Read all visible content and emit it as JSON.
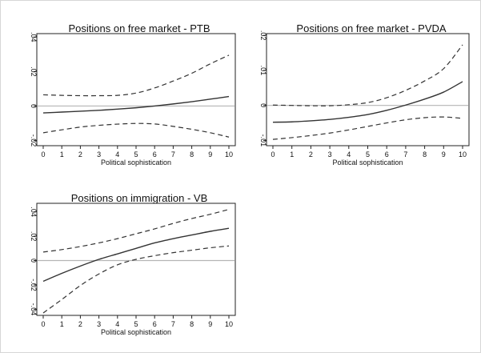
{
  "chart_data": [
    {
      "type": "line",
      "title": "Positions on free market - PTB",
      "xlabel": "Political sophistication",
      "ylabel": "",
      "x": [
        0,
        1,
        2,
        3,
        4,
        5,
        6,
        7,
        8,
        9,
        10
      ],
      "xlim": [
        0,
        10
      ],
      "ylim": [
        -0.023,
        0.042
      ],
      "yticks": [
        -0.02,
        0,
        0.02,
        0.04
      ],
      "ytick_labels": [
        "-.02",
        "0",
        ".02",
        ".04"
      ],
      "reference_line": 0,
      "series": [
        {
          "role": "estimate",
          "style": "solid",
          "values": [
            -0.004,
            -0.0035,
            -0.003,
            -0.0025,
            -0.0018,
            -0.001,
            0.0,
            0.0012,
            0.0025,
            0.004,
            0.0055
          ]
        },
        {
          "role": "upper_ci",
          "style": "dashed",
          "values": [
            0.0065,
            0.0062,
            0.006,
            0.006,
            0.0062,
            0.0075,
            0.0105,
            0.0145,
            0.019,
            0.0245,
            0.0295
          ]
        },
        {
          "role": "lower_ci",
          "style": "dashed",
          "values": [
            -0.0155,
            -0.0138,
            -0.0122,
            -0.0112,
            -0.0105,
            -0.0101,
            -0.0104,
            -0.0118,
            -0.0135,
            -0.0155,
            -0.018
          ]
        }
      ]
    },
    {
      "type": "line",
      "title": "Positions on free market - PVDA",
      "xlabel": "Political sophistication",
      "ylabel": "",
      "x": [
        0,
        1,
        2,
        3,
        4,
        5,
        6,
        7,
        8,
        9,
        10
      ],
      "xlim": [
        0,
        10
      ],
      "ylim": [
        -0.0115,
        0.0205
      ],
      "yticks": [
        -0.01,
        0,
        0.01,
        0.02
      ],
      "ytick_labels": [
        "-.01",
        "0",
        ".01",
        ".02"
      ],
      "reference_line": 0,
      "series": [
        {
          "role": "estimate",
          "style": "solid",
          "values": [
            -0.0048,
            -0.0047,
            -0.0044,
            -0.004,
            -0.0034,
            -0.0026,
            -0.0014,
            0.0001,
            0.0018,
            0.0038,
            0.0068
          ]
        },
        {
          "role": "upper_ci",
          "style": "dashed",
          "values": [
            0.0001,
            0.0,
            -0.0001,
            -0.0001,
            0.0002,
            0.0008,
            0.0022,
            0.0043,
            0.007,
            0.0105,
            0.0173
          ]
        },
        {
          "role": "lower_ci",
          "style": "dashed",
          "values": [
            -0.0097,
            -0.0092,
            -0.0086,
            -0.0079,
            -0.007,
            -0.006,
            -0.005,
            -0.0041,
            -0.0035,
            -0.0033,
            -0.0037
          ]
        }
      ]
    },
    {
      "type": "line",
      "title": "Positions on immigration - VB",
      "xlabel": "Political sophistication",
      "ylabel": "",
      "x": [
        0,
        1,
        2,
        3,
        4,
        5,
        6,
        7,
        8,
        9,
        10
      ],
      "xlim": [
        0,
        10
      ],
      "ylim": [
        -0.045,
        0.047
      ],
      "yticks": [
        -0.04,
        -0.02,
        0,
        0.02,
        0.04
      ],
      "ytick_labels": [
        "-.04",
        "-.02",
        "0",
        ".02",
        ".04"
      ],
      "reference_line": 0,
      "series": [
        {
          "role": "estimate",
          "style": "solid",
          "values": [
            -0.017,
            -0.0105,
            -0.0045,
            0.001,
            0.0055,
            0.01,
            0.0145,
            0.018,
            0.021,
            0.024,
            0.0265
          ]
        },
        {
          "role": "upper_ci",
          "style": "dashed",
          "values": [
            0.007,
            0.009,
            0.0115,
            0.0145,
            0.018,
            0.022,
            0.026,
            0.0305,
            0.0345,
            0.038,
            0.042
          ]
        },
        {
          "role": "lower_ci",
          "style": "dashed",
          "values": [
            -0.043,
            -0.032,
            -0.0205,
            -0.011,
            -0.0035,
            0.001,
            0.004,
            0.0065,
            0.0085,
            0.0105,
            0.012
          ]
        }
      ]
    }
  ]
}
